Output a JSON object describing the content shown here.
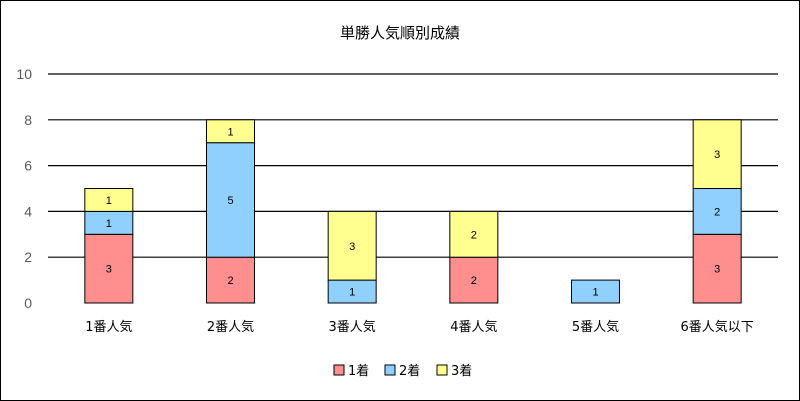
{
  "chart_data": {
    "type": "bar",
    "stacked": true,
    "title": "単勝人気順別成績",
    "xlabel": "",
    "ylabel": "",
    "ylim": [
      0,
      10
    ],
    "yticks": [
      "0",
      "2",
      "4",
      "6",
      "8",
      "10"
    ],
    "grid": true,
    "legend_position": "bottom",
    "categories": [
      "1番人気",
      "2番人気",
      "3番人気",
      "4番人気",
      "5番人気",
      "6番人気以下"
    ],
    "series": [
      {
        "name": "1着",
        "color": "#ff8f8f",
        "values": [
          3,
          2,
          0,
          2,
          0,
          3
        ]
      },
      {
        "name": "2着",
        "color": "#8fd0ff",
        "values": [
          1,
          5,
          1,
          0,
          1,
          2
        ]
      },
      {
        "name": "3着",
        "color": "#ffff8f",
        "values": [
          1,
          1,
          3,
          2,
          0,
          3
        ]
      }
    ]
  }
}
